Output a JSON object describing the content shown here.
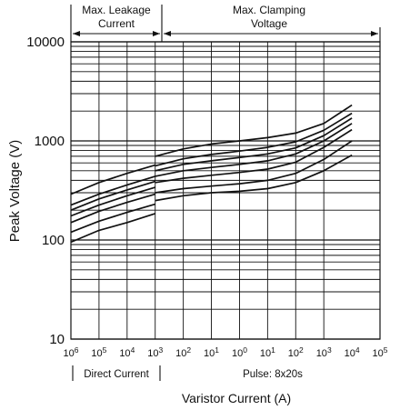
{
  "chart_data": {
    "type": "line",
    "ylabel": "Peak Voltage (V)",
    "xlabel": "Varistor Current (A)",
    "y_scale": "log",
    "x_scale": "log",
    "ylim": [
      10,
      10000
    ],
    "xlim": [
      1e-06,
      100000
    ],
    "grid": true,
    "y_ticks": [
      {
        "value": 10,
        "label": "10"
      },
      {
        "value": 100,
        "label": "100"
      },
      {
        "value": 1000,
        "label": "1000"
      },
      {
        "value": 10000,
        "label": "10000"
      }
    ],
    "x_ticks": [
      {
        "value": 1e-06,
        "base": "10",
        "exp": "6"
      },
      {
        "value": 1e-05,
        "base": "10",
        "exp": "5"
      },
      {
        "value": 0.0001,
        "base": "10",
        "exp": "4"
      },
      {
        "value": 0.001,
        "base": "10",
        "exp": "3"
      },
      {
        "value": 0.01,
        "base": "10",
        "exp": "2"
      },
      {
        "value": 0.1,
        "base": "10",
        "exp": "1"
      },
      {
        "value": 1,
        "base": "10",
        "exp": "0"
      },
      {
        "value": 10,
        "base": "10",
        "exp": "1"
      },
      {
        "value": 100,
        "base": "10",
        "exp": "2"
      },
      {
        "value": 1000,
        "base": "10",
        "exp": "3"
      },
      {
        "value": 10000,
        "base": "10",
        "exp": "4"
      },
      {
        "value": 100000,
        "base": "10",
        "exp": "5"
      }
    ],
    "regions": {
      "top_left": {
        "line1": "Max. Leakage",
        "line2": "Current"
      },
      "top_right": {
        "line1": "Max. Clamping",
        "line2": "Voltage"
      },
      "bottom_left": "Direct Current",
      "bottom_right": "Pulse: 8x20s"
    },
    "series": [
      {
        "segments": [
          {
            "x": [
              1e-06,
              1e-05,
              0.0001,
              0.001
            ],
            "y": [
              290,
              380,
              470,
              570
            ]
          },
          {
            "x": [
              0.001,
              0.01,
              0.1,
              1,
              10,
              100,
              1000,
              10000
            ],
            "y": [
              700,
              830,
              930,
              1000,
              1080,
              1200,
              1500,
              2300
            ]
          }
        ]
      },
      {
        "segments": [
          {
            "x": [
              1e-06,
              1e-05,
              0.0001,
              0.001
            ],
            "y": [
              225,
              290,
              360,
              440
            ]
          },
          {
            "x": [
              0.001,
              0.01,
              0.1,
              1,
              10,
              100,
              1000,
              10000
            ],
            "y": [
              560,
              660,
              730,
              790,
              860,
              980,
              1280,
              1900
            ]
          }
        ]
      },
      {
        "segments": [
          {
            "x": [
              1e-06,
              1e-05,
              0.0001,
              0.001
            ],
            "y": [
              200,
              260,
              320,
              390
            ]
          },
          {
            "x": [
              0.001,
              0.01,
              0.1,
              1,
              10,
              100,
              1000,
              10000
            ],
            "y": [
              500,
              580,
              630,
              680,
              740,
              850,
              1130,
              1700
            ]
          }
        ]
      },
      {
        "segments": [
          {
            "x": [
              1e-06,
              1e-05,
              0.0001,
              0.001
            ],
            "y": [
              175,
              225,
              280,
              340
            ]
          },
          {
            "x": [
              0.001,
              0.01,
              0.1,
              1,
              10,
              100,
              1000,
              10000
            ],
            "y": [
              440,
              500,
              540,
              580,
              630,
              740,
              1000,
              1500
            ]
          }
        ]
      },
      {
        "segments": [
          {
            "x": [
              1e-06,
              1e-05,
              0.0001,
              0.001
            ],
            "y": [
              150,
              195,
              240,
              290
            ]
          },
          {
            "x": [
              0.001,
              0.01,
              0.1,
              1,
              10,
              100,
              1000,
              10000
            ],
            "y": [
              380,
              420,
              450,
              480,
              520,
              610,
              860,
              1300
            ]
          }
        ]
      },
      {
        "segments": [
          {
            "x": [
              1e-06,
              1e-05,
              0.0001,
              0.001
            ],
            "y": [
              120,
              155,
              190,
              230
            ]
          },
          {
            "x": [
              0.001,
              0.01,
              0.1,
              1,
              10,
              100,
              1000,
              10000
            ],
            "y": [
              300,
              330,
              350,
              370,
              400,
              470,
              650,
              1000
            ]
          }
        ]
      },
      {
        "segments": [
          {
            "x": [
              1e-06,
              1e-05,
              0.0001,
              0.001
            ],
            "y": [
              95,
              125,
              150,
              185
            ]
          },
          {
            "x": [
              0.001,
              0.01,
              0.1,
              1,
              10,
              100,
              1000,
              10000
            ],
            "y": [
              250,
              280,
              300,
              310,
              330,
              380,
              500,
              720
            ]
          }
        ]
      }
    ]
  }
}
